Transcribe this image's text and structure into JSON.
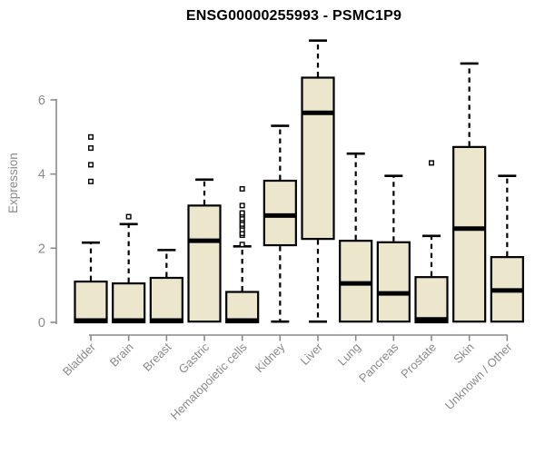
{
  "chart_data": {
    "type": "boxplot",
    "title": "ENSG00000255993 - PSMC1P9",
    "ylabel": "Expression",
    "xlabel": "",
    "yticks": [
      0,
      2,
      4,
      6
    ],
    "ylim": [
      -0.3,
      7.9
    ],
    "grid": false,
    "legend": "none",
    "categories": [
      "Bladder",
      "Brain",
      "Breast",
      "Gastric",
      "Hematopoietic cells",
      "Kidney",
      "Liver",
      "Lung",
      "Pancreas",
      "Prostate",
      "Skin",
      "Unknown / Other"
    ],
    "boxes": [
      {
        "category": "Bladder",
        "whisker_low": null,
        "q1": 0,
        "median": 0.05,
        "q3": 1.1,
        "whisker_high": 2.15,
        "outliers": [
          3.8,
          4.25,
          4.7,
          5.0
        ]
      },
      {
        "category": "Brain",
        "whisker_low": null,
        "q1": 0,
        "median": 0.05,
        "q3": 1.05,
        "whisker_high": 2.65,
        "outliers": [
          2.85
        ]
      },
      {
        "category": "Breast",
        "whisker_low": null,
        "q1": 0,
        "median": 0.05,
        "q3": 1.2,
        "whisker_high": 1.95,
        "outliers": []
      },
      {
        "category": "Gastric",
        "whisker_low": null,
        "q1": 0.02,
        "median": 2.2,
        "q3": 3.15,
        "whisker_high": 3.85,
        "outliers": []
      },
      {
        "category": "Hematopoietic cells",
        "whisker_low": null,
        "q1": 0,
        "median": 0.05,
        "q3": 0.82,
        "whisker_high": 2.05,
        "outliers": [
          2.1,
          2.35,
          2.4,
          2.5,
          2.6,
          2.65,
          2.75,
          2.8,
          2.9,
          2.95,
          3.15,
          3.6
        ]
      },
      {
        "category": "Kidney",
        "whisker_low": 0.02,
        "q1": 2.08,
        "median": 2.88,
        "q3": 3.82,
        "whisker_high": 5.3,
        "outliers": []
      },
      {
        "category": "Liver",
        "whisker_low": 0.02,
        "q1": 2.25,
        "median": 5.65,
        "q3": 6.6,
        "whisker_high": 7.6,
        "outliers": []
      },
      {
        "category": "Lung",
        "whisker_low": null,
        "q1": 0.02,
        "median": 1.05,
        "q3": 2.2,
        "whisker_high": 4.55,
        "outliers": []
      },
      {
        "category": "Pancreas",
        "whisker_low": null,
        "q1": 0.02,
        "median": 0.78,
        "q3": 2.16,
        "whisker_high": 3.95,
        "outliers": []
      },
      {
        "category": "Prostate",
        "whisker_low": null,
        "q1": 0,
        "median": 0.08,
        "q3": 1.22,
        "whisker_high": 2.33,
        "outliers": [
          4.3
        ]
      },
      {
        "category": "Skin",
        "whisker_low": null,
        "q1": 0.02,
        "median": 2.53,
        "q3": 4.73,
        "whisker_high": 6.98,
        "outliers": []
      },
      {
        "category": "Unknown / Other",
        "whisker_low": null,
        "q1": 0.02,
        "median": 0.86,
        "q3": 1.76,
        "whisker_high": 3.95,
        "outliers": []
      }
    ],
    "colors": {
      "box_fill": "#ece6cd",
      "box_border": "#000000",
      "median": "#000000",
      "whisker": "#000000",
      "outlier_fill": "#ffffff",
      "axis": "#8a8a8a",
      "tick_label": "#8a8a8a",
      "title": "#000000",
      "background": "#ffffff"
    }
  }
}
